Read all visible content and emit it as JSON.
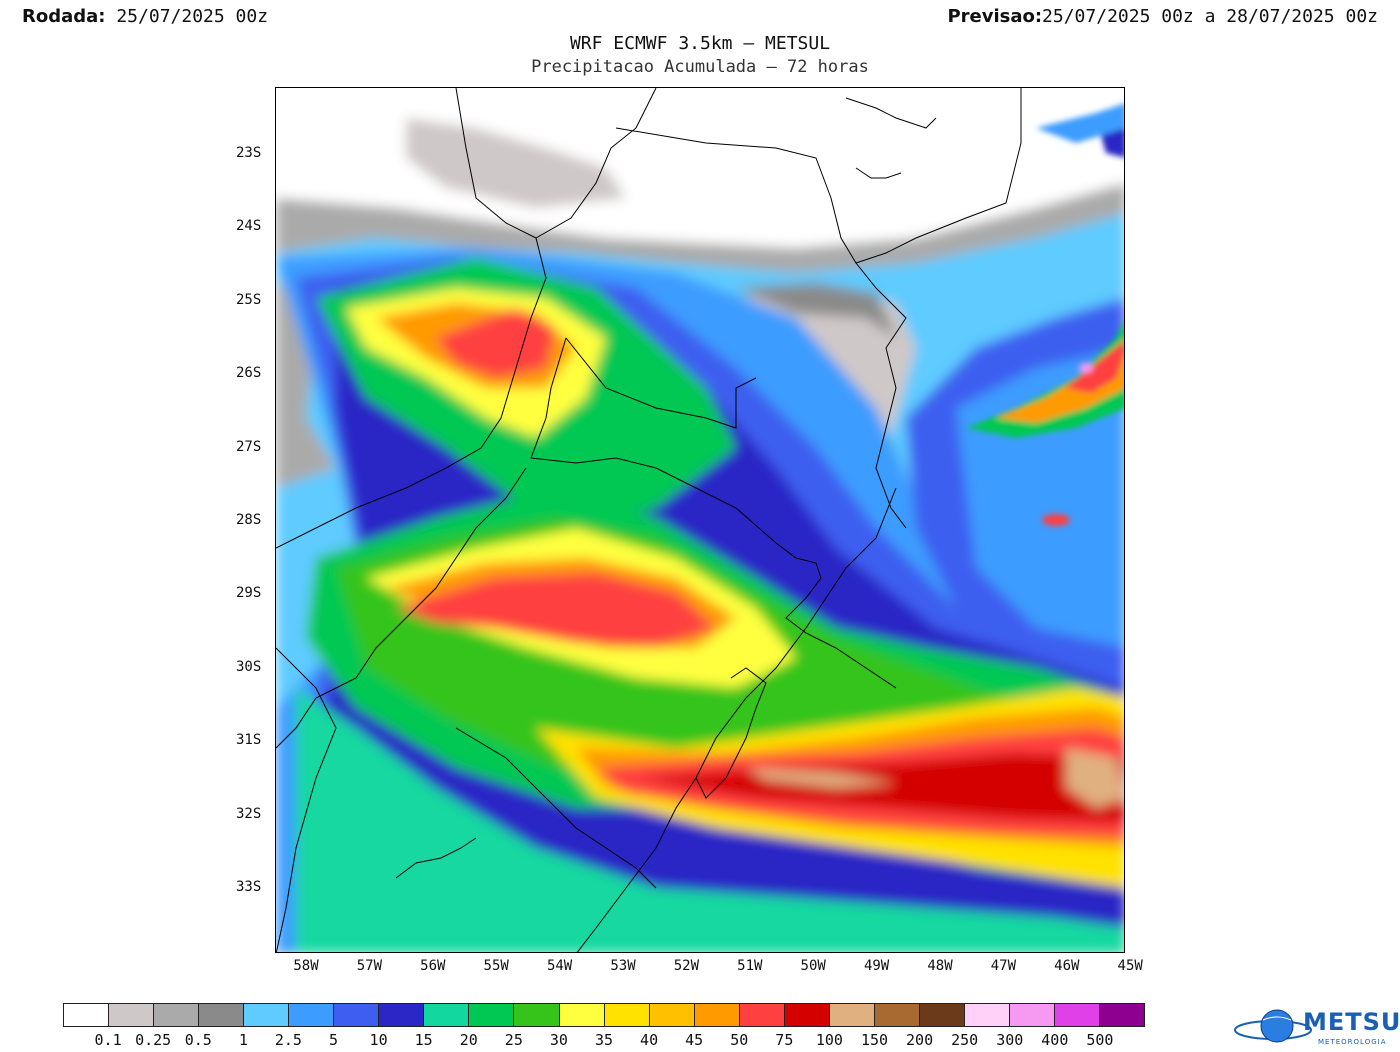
{
  "header": {
    "rodada_label": "Rodada:",
    "rodada_value": "25/07/2025 00z",
    "previsao_label": "Previsao:",
    "previsao_value": "25/07/2025 00z a 28/07/2025 00z",
    "title": "WRF ECMWF 3.5km – METSUL",
    "subtitle": "Precipitacao Acumulada – 72 horas"
  },
  "map": {
    "lat_labels": [
      "23S",
      "24S",
      "25S",
      "26S",
      "27S",
      "28S",
      "29S",
      "30S",
      "31S",
      "32S",
      "33S"
    ],
    "lon_labels": [
      "58W",
      "57W",
      "56W",
      "55W",
      "54W",
      "53W",
      "52W",
      "51W",
      "50W",
      "49W",
      "48W",
      "47W",
      "46W",
      "45W"
    ]
  },
  "legend": {
    "colors": [
      "#ffffff",
      "#cfc8c8",
      "#aaaaaa",
      "#8a8a8a",
      "#5fcbff",
      "#3d9cff",
      "#3d5ef0",
      "#2b27c6",
      "#12d8a0",
      "#00c853",
      "#36c41a",
      "#ffff40",
      "#ffe200",
      "#ffc000",
      "#ff9a00",
      "#ff4040",
      "#d40000",
      "#e0b080",
      "#a86a30",
      "#6a3a1a",
      "#ffd0f8",
      "#f59af0",
      "#e040e8",
      "#8e0090"
    ],
    "labels": [
      "0.1",
      "0.25",
      "0.5",
      "1",
      "2.5",
      "5",
      "10",
      "15",
      "20",
      "25",
      "30",
      "35",
      "40",
      "45",
      "50",
      "75",
      "100",
      "150",
      "200",
      "250",
      "300",
      "400",
      "500"
    ]
  },
  "logo": {
    "text": "METSUL",
    "sub": "METEOROLOGIA"
  }
}
